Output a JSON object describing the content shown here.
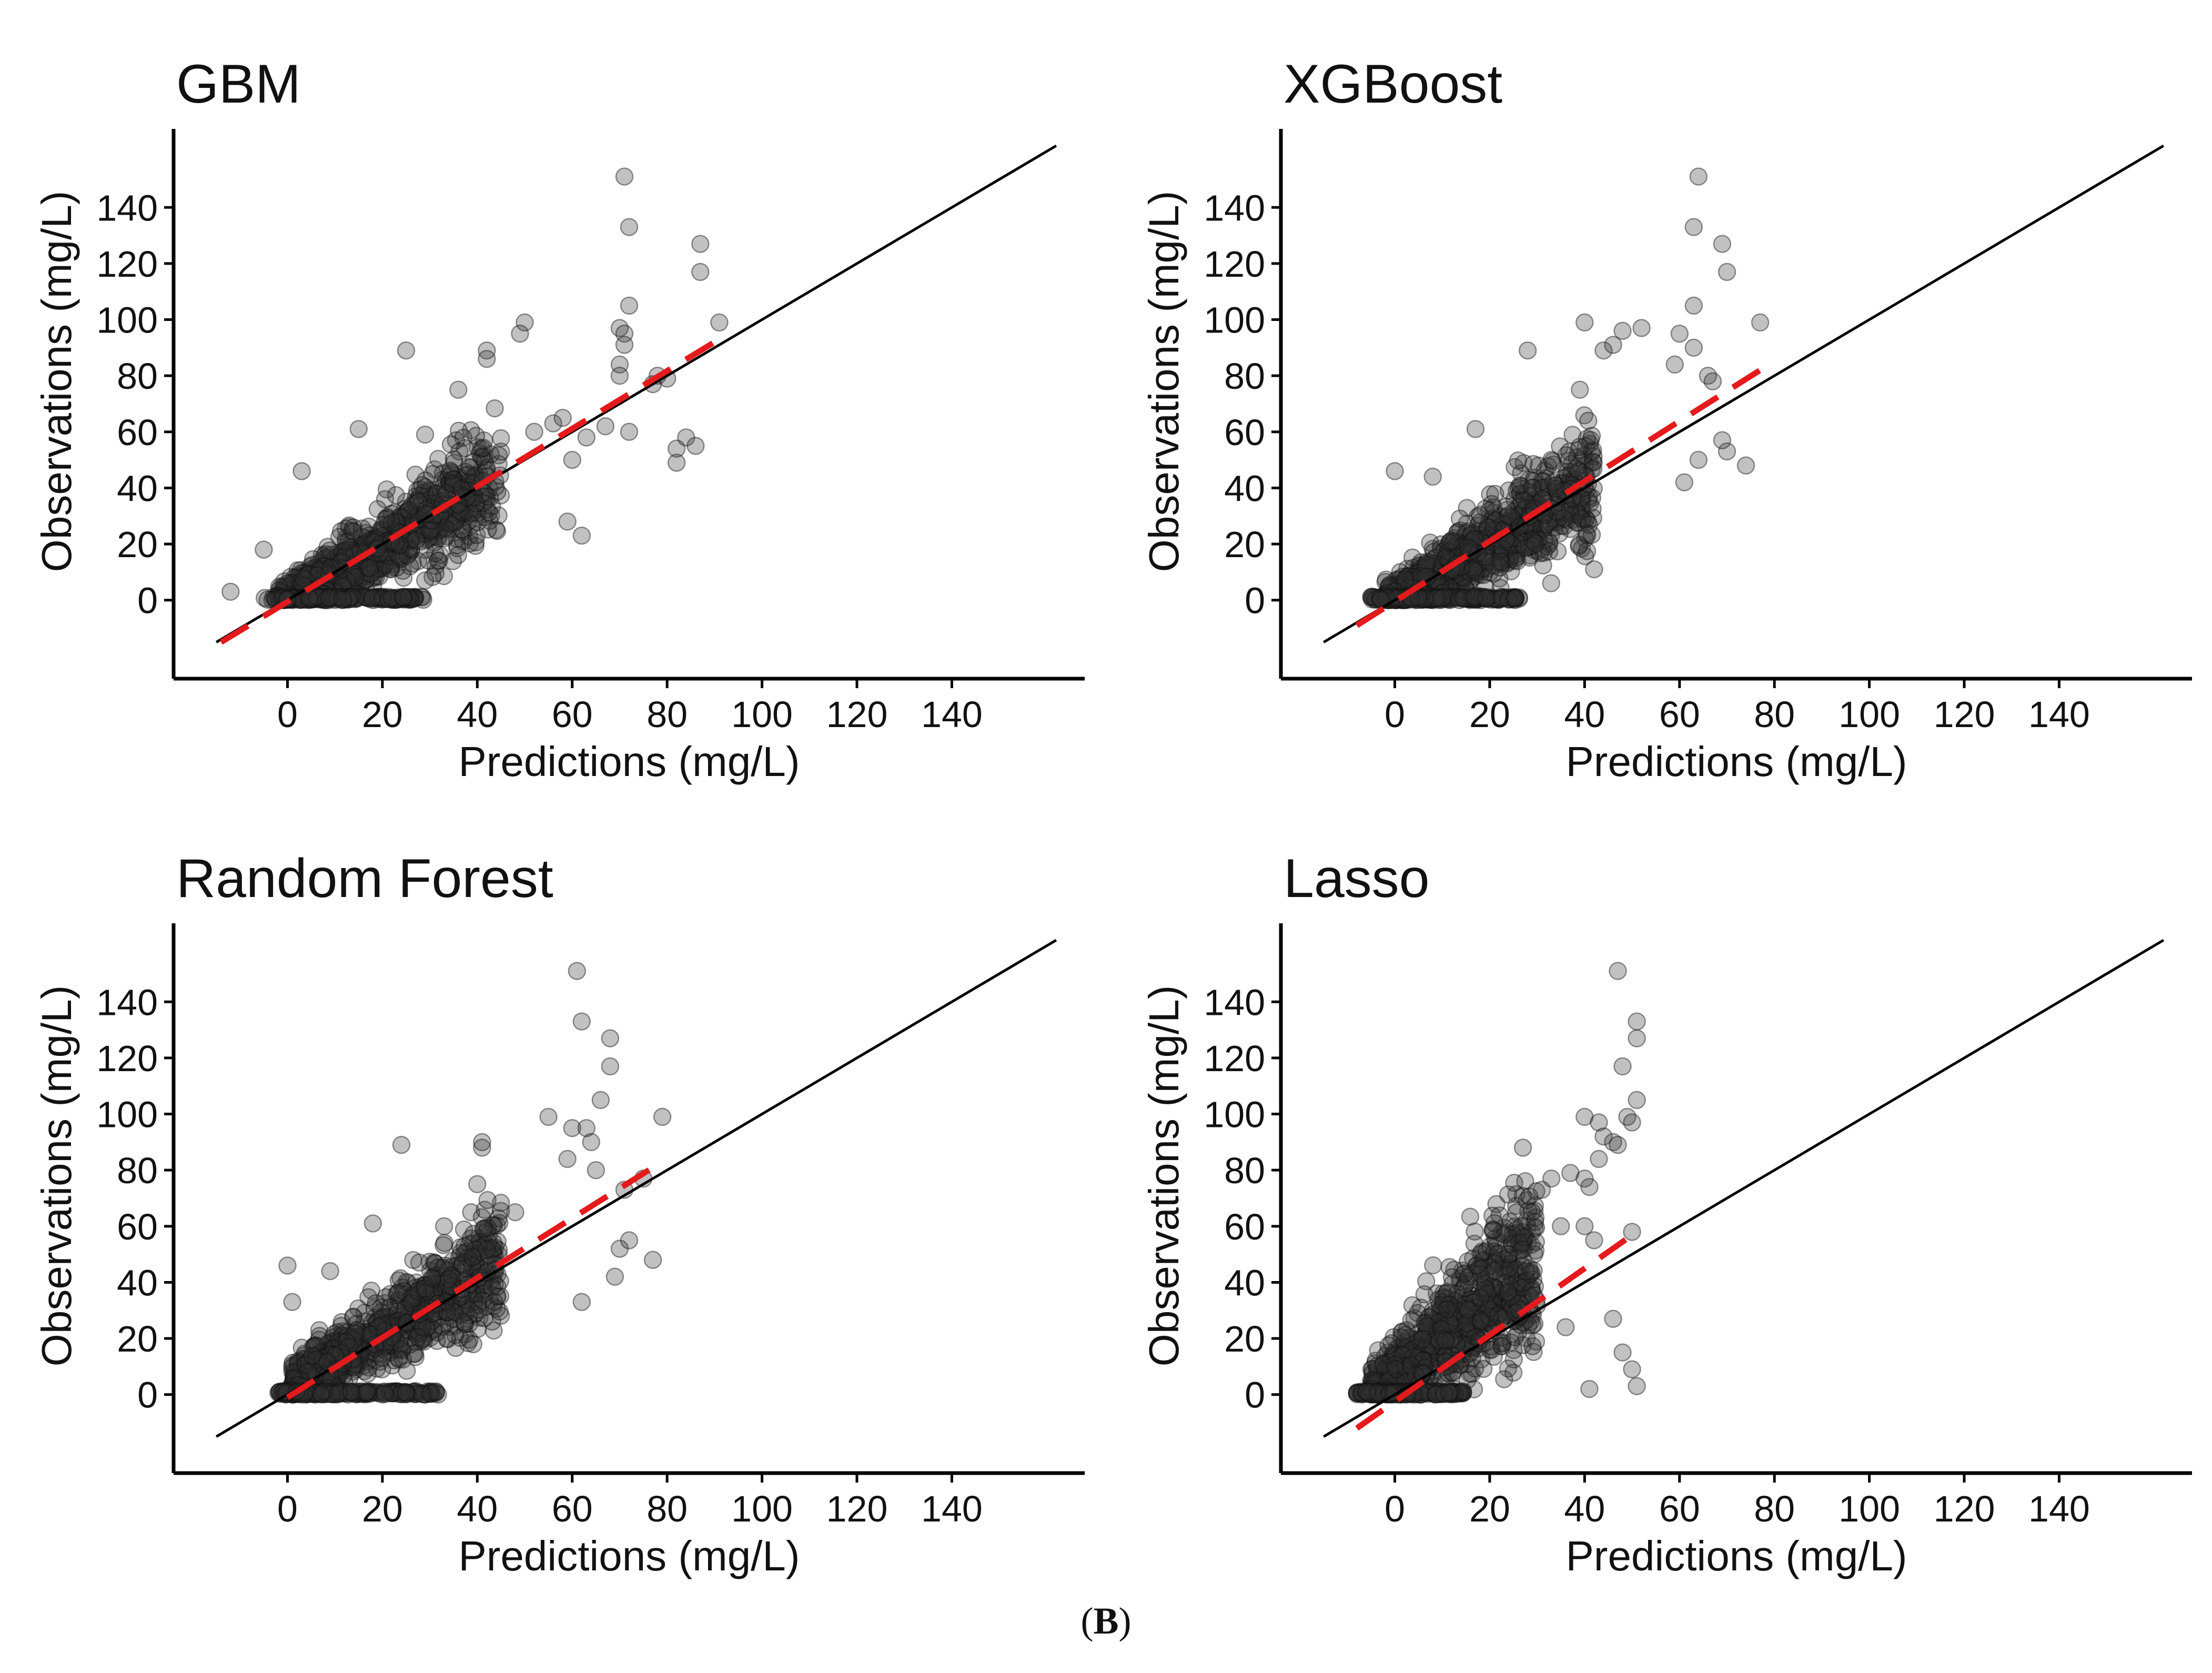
{
  "caption": {
    "open": "(",
    "letter": "B",
    "close": ")"
  },
  "chart_data": [
    {
      "type": "scatter",
      "title": "GBM",
      "xlabel": "Predictions (mg/L)",
      "ylabel": "Observations (mg/L)",
      "xlim": [
        -24,
        168
      ],
      "ylim": [
        -28,
        168
      ],
      "xticks": [
        0,
        20,
        40,
        60,
        80,
        100,
        120,
        140
      ],
      "yticks": [
        0,
        20,
        40,
        60,
        80,
        100,
        120,
        140
      ],
      "identity_line": {
        "from": [
          -15,
          -15
        ],
        "to": [
          162,
          162
        ],
        "color": "#000000"
      },
      "fit_line": {
        "from": [
          -14,
          -15
        ],
        "to": [
          90,
          92
        ],
        "color": "#e41a1c",
        "style": "dashed"
      },
      "point_color": "#333333",
      "cloud": {
        "n": 900,
        "x_range": [
          -2,
          45
        ],
        "slope": 1.0,
        "intercept": 0,
        "noise": 7.5
      },
      "outliers": [
        [
          71,
          151
        ],
        [
          72,
          133
        ],
        [
          87,
          127
        ],
        [
          87,
          117
        ],
        [
          91,
          99
        ],
        [
          72,
          105
        ],
        [
          70,
          97
        ],
        [
          71,
          95
        ],
        [
          71,
          91
        ],
        [
          70,
          84
        ],
        [
          70,
          80
        ],
        [
          78,
          80
        ],
        [
          77,
          77
        ],
        [
          80,
          79
        ],
        [
          84,
          58
        ],
        [
          82,
          54
        ],
        [
          86,
          55
        ],
        [
          82,
          49
        ],
        [
          72,
          60
        ],
        [
          67,
          62
        ],
        [
          63,
          58
        ],
        [
          60,
          50
        ],
        [
          59,
          28
        ],
        [
          62,
          23
        ],
        [
          25,
          89
        ],
        [
          42,
          89
        ],
        [
          42,
          86
        ],
        [
          50,
          99
        ],
        [
          49,
          95
        ],
        [
          36,
          75
        ],
        [
          -12,
          3
        ],
        [
          -5,
          18
        ],
        [
          3,
          46
        ],
        [
          15,
          61
        ],
        [
          29,
          59
        ],
        [
          52,
          60
        ],
        [
          56,
          63
        ],
        [
          58,
          65
        ]
      ]
    },
    {
      "type": "scatter",
      "title": "XGBoost",
      "xlabel": "Predictions (mg/L)",
      "ylabel": "Observations (mg/L)",
      "xlim": [
        -24,
        168
      ],
      "ylim": [
        -28,
        168
      ],
      "xticks": [
        0,
        20,
        40,
        60,
        80,
        100,
        120,
        140
      ],
      "yticks": [
        0,
        20,
        40,
        60,
        80,
        100,
        120,
        140
      ],
      "identity_line": {
        "from": [
          -15,
          -15
        ],
        "to": [
          162,
          162
        ],
        "color": "#000000"
      },
      "fit_line": {
        "from": [
          -8,
          -9
        ],
        "to": [
          77,
          82
        ],
        "color": "#e41a1c",
        "style": "dashed"
      },
      "point_color": "#333333",
      "cloud": {
        "n": 900,
        "x_range": [
          -2,
          42
        ],
        "slope": 1.0,
        "intercept": 0,
        "noise": 7.5
      },
      "outliers": [
        [
          64,
          151
        ],
        [
          63,
          133
        ],
        [
          69,
          127
        ],
        [
          70,
          117
        ],
        [
          77,
          99
        ],
        [
          63,
          105
        ],
        [
          60,
          95
        ],
        [
          63,
          90
        ],
        [
          59,
          84
        ],
        [
          66,
          80
        ],
        [
          67,
          78
        ],
        [
          74,
          48
        ],
        [
          70,
          53
        ],
        [
          69,
          57
        ],
        [
          64,
          50
        ],
        [
          61,
          42
        ],
        [
          40,
          99
        ],
        [
          44,
          89
        ],
        [
          46,
          91
        ],
        [
          48,
          96
        ],
        [
          52,
          97
        ],
        [
          39,
          75
        ],
        [
          28,
          89
        ],
        [
          -3,
          0
        ],
        [
          0,
          46
        ],
        [
          8,
          44
        ],
        [
          17,
          61
        ],
        [
          33,
          50
        ],
        [
          42,
          11
        ]
      ]
    },
    {
      "type": "scatter",
      "title": "Random Forest",
      "xlabel": "Predictions (mg/L)",
      "ylabel": "Observations (mg/L)",
      "xlim": [
        -24,
        168
      ],
      "ylim": [
        -28,
        168
      ],
      "xticks": [
        0,
        20,
        40,
        60,
        80,
        100,
        120,
        140
      ],
      "yticks": [
        0,
        20,
        40,
        60,
        80,
        100,
        120,
        140
      ],
      "identity_line": {
        "from": [
          -15,
          -15
        ],
        "to": [
          162,
          162
        ],
        "color": "#000000"
      },
      "fit_line": {
        "from": [
          0,
          -1
        ],
        "to": [
          78,
          82
        ],
        "color": "#e41a1c",
        "style": "dashed"
      },
      "point_color": "#333333",
      "cloud": {
        "n": 900,
        "x_range": [
          1,
          45
        ],
        "slope": 1.0,
        "intercept": 2,
        "noise": 7.5
      },
      "outliers": [
        [
          61,
          151
        ],
        [
          62,
          133
        ],
        [
          68,
          127
        ],
        [
          68,
          117
        ],
        [
          79,
          99
        ],
        [
          66,
          105
        ],
        [
          55,
          99
        ],
        [
          60,
          95
        ],
        [
          63,
          95
        ],
        [
          64,
          90
        ],
        [
          59,
          84
        ],
        [
          65,
          80
        ],
        [
          71,
          73
        ],
        [
          75,
          77
        ],
        [
          77,
          48
        ],
        [
          70,
          52
        ],
        [
          72,
          55
        ],
        [
          62,
          33
        ],
        [
          69,
          42
        ],
        [
          41,
          88
        ],
        [
          41,
          90
        ],
        [
          40,
          75
        ],
        [
          24,
          89
        ],
        [
          0,
          46
        ],
        [
          1,
          33
        ],
        [
          9,
          44
        ],
        [
          18,
          61
        ],
        [
          33,
          60
        ],
        [
          39,
          49
        ],
        [
          48,
          65
        ]
      ]
    },
    {
      "type": "scatter",
      "title": "Lasso",
      "xlabel": "Predictions (mg/L)",
      "ylabel": "Observations (mg/L)",
      "xlim": [
        -24,
        168
      ],
      "ylim": [
        -28,
        168
      ],
      "xticks": [
        0,
        20,
        40,
        60,
        80,
        100,
        120,
        140
      ],
      "yticks": [
        0,
        20,
        40,
        60,
        80,
        100,
        120,
        140
      ],
      "identity_line": {
        "from": [
          -15,
          -15
        ],
        "to": [
          162,
          162
        ],
        "color": "#000000"
      },
      "fit_line": {
        "from": [
          -8,
          -12
        ],
        "to": [
          51,
          58
        ],
        "color": "#e41a1c",
        "style": "dashed"
      },
      "point_color": "#333333",
      "cloud": {
        "n": 900,
        "x_range": [
          -5,
          30
        ],
        "slope": 1.4,
        "intercept": 6,
        "noise": 11
      },
      "outliers": [
        [
          47,
          151
        ],
        [
          51,
          133
        ],
        [
          51,
          127
        ],
        [
          48,
          117
        ],
        [
          51,
          105
        ],
        [
          40,
          99
        ],
        [
          43,
          97
        ],
        [
          49,
          99
        ],
        [
          50,
          97
        ],
        [
          44,
          92
        ],
        [
          46,
          90
        ],
        [
          47,
          89
        ],
        [
          43,
          84
        ],
        [
          37,
          79
        ],
        [
          40,
          77
        ],
        [
          41,
          74
        ],
        [
          33,
          77
        ],
        [
          35,
          60
        ],
        [
          40,
          60
        ],
        [
          42,
          55
        ],
        [
          50,
          58
        ],
        [
          46,
          27
        ],
        [
          48,
          15
        ],
        [
          50,
          9
        ],
        [
          51,
          3
        ],
        [
          27,
          88
        ],
        [
          24,
          50
        ],
        [
          36,
          24
        ],
        [
          41,
          2
        ],
        [
          31,
          73
        ]
      ]
    }
  ]
}
